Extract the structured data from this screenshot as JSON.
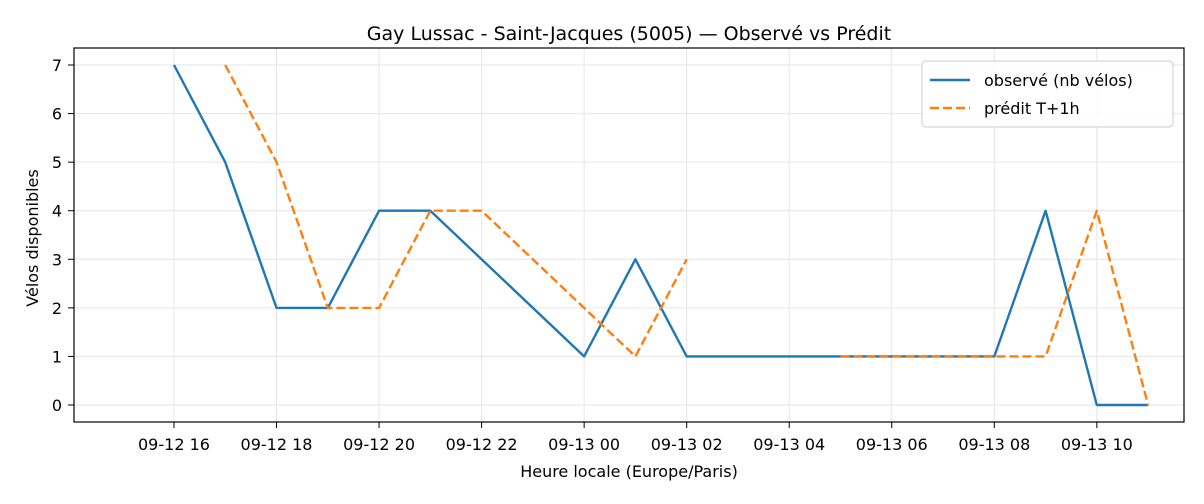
{
  "chart_data": {
    "type": "line",
    "title": "Gay Lussac - Saint-Jacques (5005) — Observé vs Prédit",
    "xlabel": "Heure locale (Europe/Paris)",
    "ylabel": "Vélos disponibles",
    "x_ticks": [
      {
        "hour": 16,
        "label": "09-12 16"
      },
      {
        "hour": 18,
        "label": "09-12 18"
      },
      {
        "hour": 20,
        "label": "09-12 20"
      },
      {
        "hour": 22,
        "label": "09-12 22"
      },
      {
        "hour": 24,
        "label": "09-13 00"
      },
      {
        "hour": 26,
        "label": "09-13 02"
      },
      {
        "hour": 28,
        "label": "09-13 04"
      },
      {
        "hour": 30,
        "label": "09-13 06"
      },
      {
        "hour": 32,
        "label": "09-13 08"
      },
      {
        "hour": 34,
        "label": "09-13 10"
      }
    ],
    "xlim": [
      14.05,
      35.7
    ],
    "y_ticks": [
      0,
      1,
      2,
      3,
      4,
      5,
      6,
      7
    ],
    "ylim": [
      -0.35,
      7.35
    ],
    "grid": true,
    "legend_position": "top-right",
    "series": [
      {
        "name": "observé (nb vélos)",
        "color": "#1f77b4",
        "style": "solid",
        "segments": [
          [
            [
              16,
              7
            ],
            [
              17,
              5
            ],
            [
              18,
              2
            ],
            [
              19,
              2
            ],
            [
              20,
              4
            ],
            [
              21,
              4
            ],
            [
              24,
              1
            ],
            [
              25,
              3
            ],
            [
              26,
              1
            ],
            [
              32,
              1
            ],
            [
              33,
              4
            ],
            [
              34,
              0
            ],
            [
              35,
              0
            ]
          ]
        ]
      },
      {
        "name": "prédit T+1h",
        "color": "#ff7f0e",
        "style": "dashed",
        "segments": [
          [
            [
              17,
              7
            ],
            [
              18,
              5
            ],
            [
              19,
              2
            ],
            [
              20,
              2
            ],
            [
              21,
              4
            ],
            [
              22,
              4
            ],
            [
              24,
              2
            ],
            [
              25,
              1
            ],
            [
              26,
              3
            ]
          ],
          [
            [
              29,
              1
            ],
            [
              32,
              1
            ],
            [
              33,
              1
            ],
            [
              34,
              4
            ],
            [
              35,
              0
            ]
          ]
        ]
      }
    ]
  }
}
